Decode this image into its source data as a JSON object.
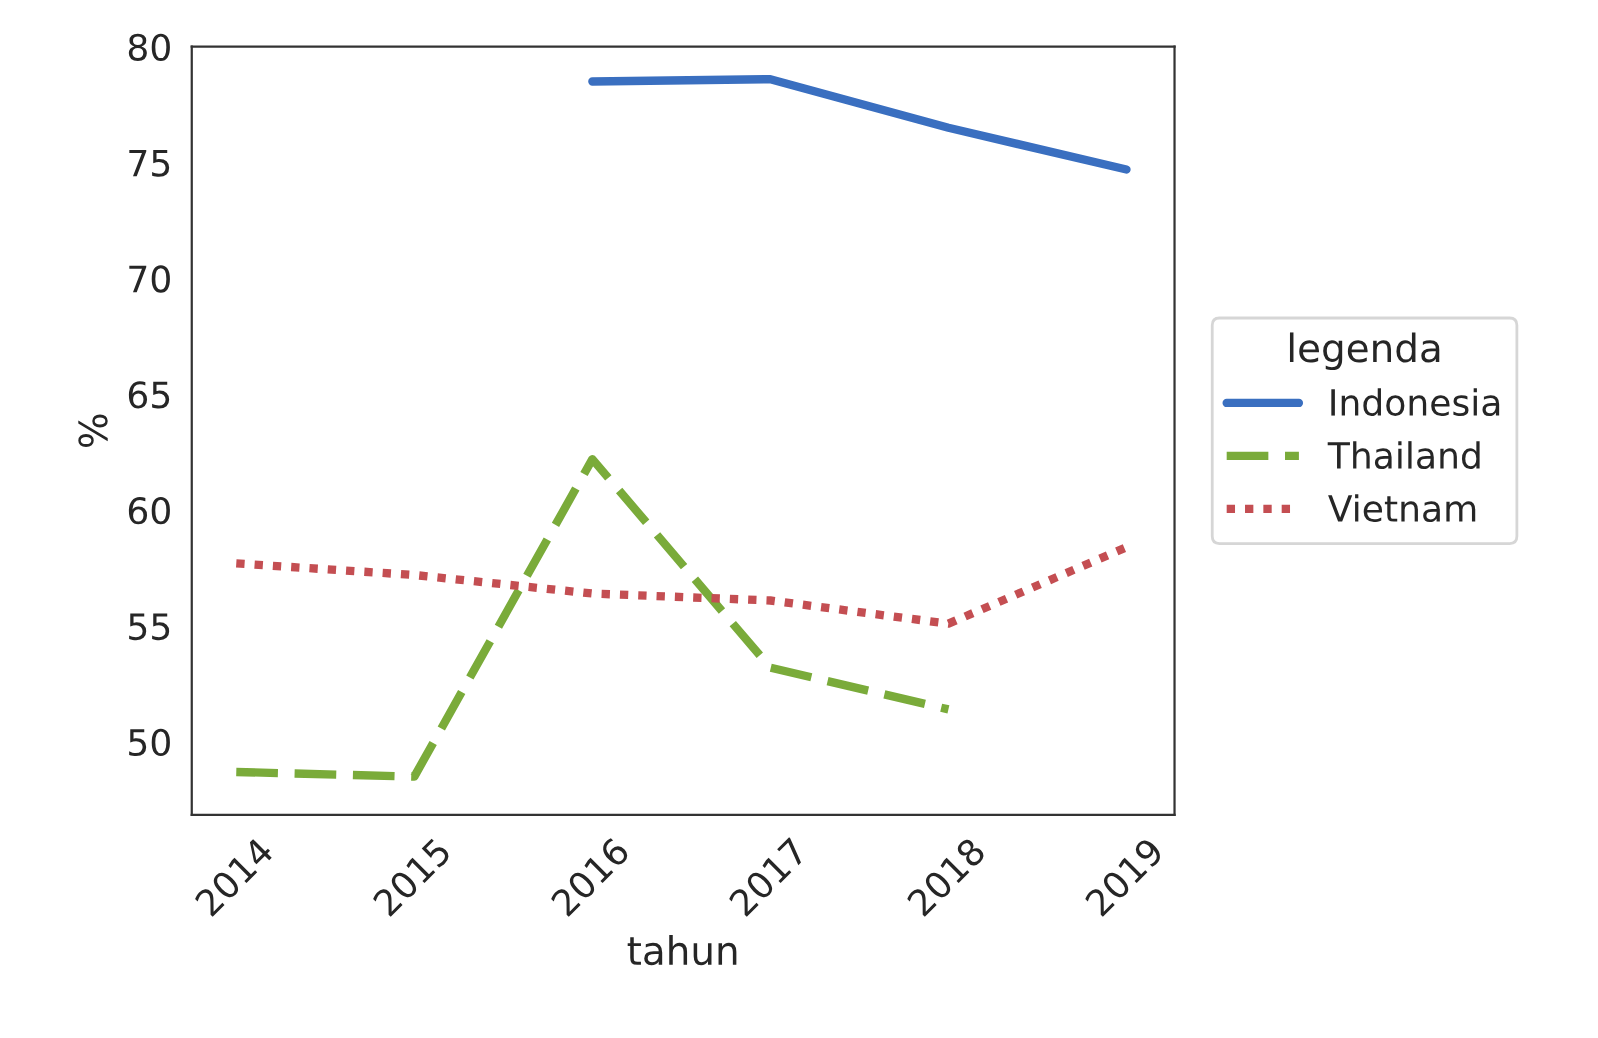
{
  "chart_data": {
    "type": "line",
    "xlabel": "tahun",
    "ylabel": "%",
    "legend_title": "legenda",
    "legend": "right",
    "x": [
      2014,
      2015,
      2016,
      2017,
      2018,
      2019
    ],
    "xlim": [
      2013.75,
      2019.27
    ],
    "xticks": [
      2014,
      2015,
      2016,
      2017,
      2018,
      2019
    ],
    "ylim": [
      46.85,
      80
    ],
    "yticks": [
      50,
      55,
      60,
      65,
      70,
      75,
      80
    ],
    "grid": false,
    "series": [
      {
        "name": "Indonesia",
        "color": "#3a6fc0",
        "line_style": "solid",
        "values": [
          null,
          null,
          78.5,
          78.6,
          76.5,
          74.7
        ]
      },
      {
        "name": "Thailand",
        "color": "#7aab3a",
        "line_style": "dashed",
        "values": [
          48.7,
          48.5,
          62.2,
          53.2,
          51.4,
          null
        ]
      },
      {
        "name": "Vietnam",
        "color": "#c44e52",
        "line_style": "dotted",
        "values": [
          57.7,
          57.2,
          56.4,
          56.1,
          55.1,
          58.4
        ]
      }
    ]
  }
}
